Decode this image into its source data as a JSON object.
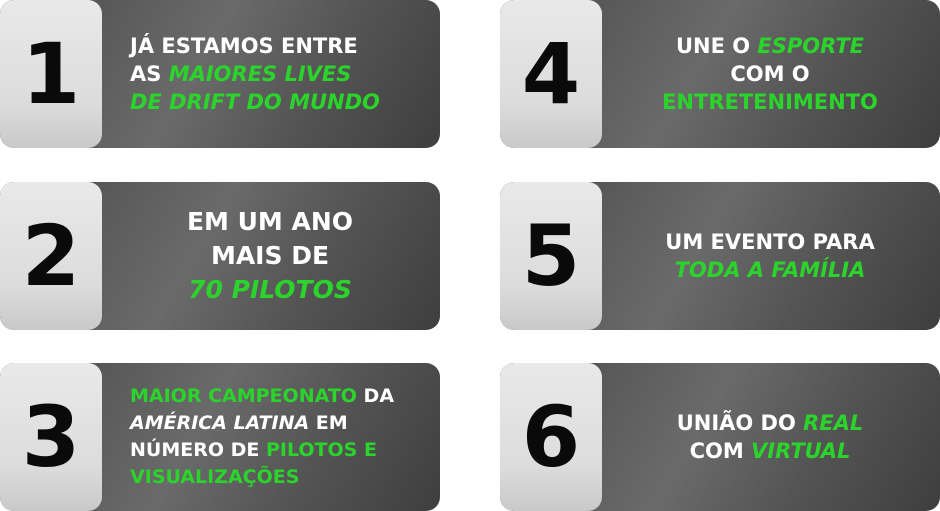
{
  "cards": [
    {
      "number": "1",
      "align": "left",
      "lines": [
        [
          {
            "text": "JÁ ESTAMOS ENTRE",
            "style": "white"
          }
        ],
        [
          {
            "text": "AS ",
            "style": "white"
          },
          {
            "text": "MAIORES LIVES",
            "style": "green-italic"
          }
        ],
        [
          {
            "text": "DE DRIFT DO MUNDO",
            "style": "green-italic"
          }
        ]
      ]
    },
    {
      "number": "2",
      "align": "center",
      "lines": [
        [
          {
            "text": "EM UM ANO",
            "style": "white"
          }
        ],
        [
          {
            "text": "MAIS DE",
            "style": "white"
          }
        ],
        [
          {
            "text": "70 PILOTOS",
            "style": "green-italic"
          }
        ]
      ]
    },
    {
      "number": "3",
      "align": "left",
      "lines": [
        [
          {
            "text": "MAIOR CAMPEONATO",
            "style": "green"
          },
          {
            "text": " DA",
            "style": "white"
          }
        ],
        [
          {
            "text": "AMÉRICA LATINA",
            "style": "white-italic"
          },
          {
            "text": " EM",
            "style": "white"
          }
        ],
        [
          {
            "text": "NÚMERO DE ",
            "style": "white"
          },
          {
            "text": "PILOTOS E",
            "style": "green"
          }
        ],
        [
          {
            "text": "VISUALIZAÇÕES",
            "style": "green"
          }
        ]
      ]
    },
    {
      "number": "4",
      "align": "center",
      "lines": [
        [
          {
            "text": "UNE O ",
            "style": "white"
          },
          {
            "text": "ESPORTE",
            "style": "green-italic"
          }
        ],
        [
          {
            "text": "COM O",
            "style": "white"
          }
        ],
        [
          {
            "text": "ENTRETENIMENTO",
            "style": "green"
          }
        ]
      ]
    },
    {
      "number": "5",
      "align": "center",
      "lines": [
        [
          {
            "text": "UM EVENTO PARA",
            "style": "white"
          }
        ],
        [
          {
            "text": "TODA A FAMÍLIA",
            "style": "green-italic"
          }
        ]
      ]
    },
    {
      "number": "6",
      "align": "center",
      "lines": [
        [
          {
            "text": "UNIÃO DO ",
            "style": "white"
          },
          {
            "text": "REAL",
            "style": "green-italic"
          }
        ],
        [
          {
            "text": "COM ",
            "style": "white"
          },
          {
            "text": "VIRTUAL",
            "style": "green-italic"
          }
        ]
      ]
    }
  ]
}
